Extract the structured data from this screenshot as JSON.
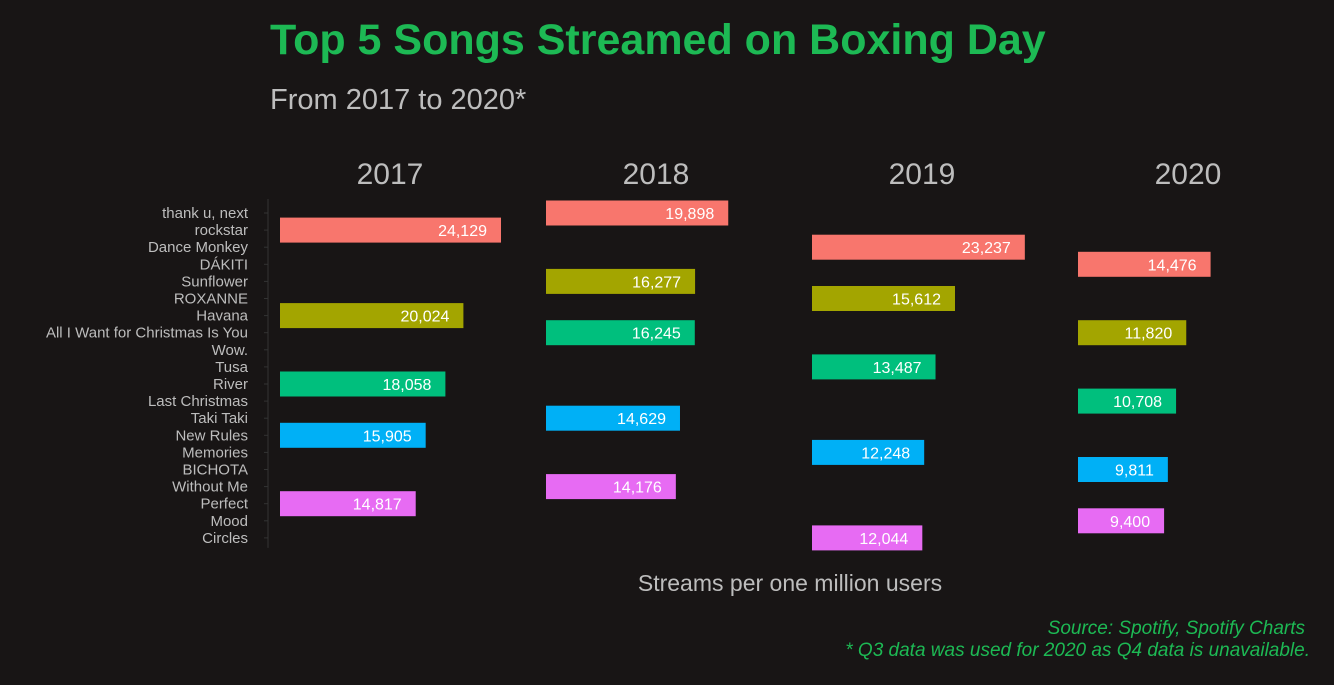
{
  "chart_data": {
    "type": "bar",
    "orientation": "horizontal",
    "title": "Top 5 Songs Streamed on Boxing Day",
    "subtitle": "From 2017 to 2020*",
    "xlabel": "Streams per one million users",
    "ylabel": "",
    "grid": false,
    "categories": [
      "thank u, next",
      "rockstar",
      "Dance Monkey",
      "DÁKITI",
      "Sunflower",
      "ROXANNE",
      "Havana",
      "All I Want for Christmas Is You",
      "Wow.",
      "Tusa",
      "River",
      "Last Christmas",
      "Taki Taki",
      "New Rules",
      "Memories",
      "BICHOTA",
      "Without Me",
      "Perfect",
      "Mood",
      "Circles"
    ],
    "rank_colors": [
      "#F8766D",
      "#A3A500",
      "#00BF7D",
      "#00B0F6",
      "#E76BF3"
    ],
    "facets": [
      {
        "label": "2017",
        "bars": [
          {
            "song": "rockstar",
            "rank": 1,
            "value": 24129,
            "label": "24,129"
          },
          {
            "song": "Havana",
            "rank": 2,
            "value": 20024,
            "label": "20,024"
          },
          {
            "song": "River",
            "rank": 3,
            "value": 18058,
            "label": "18,058"
          },
          {
            "song": "New Rules",
            "rank": 4,
            "value": 15905,
            "label": "15,905"
          },
          {
            "song": "Perfect",
            "rank": 5,
            "value": 14817,
            "label": "14,817"
          }
        ]
      },
      {
        "label": "2018",
        "bars": [
          {
            "song": "thank u, next",
            "rank": 1,
            "value": 19898,
            "label": "19,898"
          },
          {
            "song": "Sunflower",
            "rank": 2,
            "value": 16277,
            "label": "16,277"
          },
          {
            "song": "All I Want for Christmas Is You",
            "rank": 3,
            "value": 16245,
            "label": "16,245"
          },
          {
            "song": "Taki Taki",
            "rank": 4,
            "value": 14629,
            "label": "14,629"
          },
          {
            "song": "Without Me",
            "rank": 5,
            "value": 14176,
            "label": "14,176"
          }
        ]
      },
      {
        "label": "2019",
        "bars": [
          {
            "song": "Dance Monkey",
            "rank": 1,
            "value": 23237,
            "label": "23,237"
          },
          {
            "song": "ROXANNE",
            "rank": 2,
            "value": 15612,
            "label": "15,612"
          },
          {
            "song": "Tusa",
            "rank": 3,
            "value": 13487,
            "label": "13,487"
          },
          {
            "song": "Memories",
            "rank": 4,
            "value": 12248,
            "label": "12,248"
          },
          {
            "song": "Circles",
            "rank": 5,
            "value": 12044,
            "label": "12,044"
          }
        ]
      },
      {
        "label": "2020",
        "bars": [
          {
            "song": "DÁKITI",
            "rank": 1,
            "value": 14476,
            "label": "14,476"
          },
          {
            "song": "All I Want for Christmas Is You",
            "rank": 2,
            "value": 11820,
            "label": "11,820"
          },
          {
            "song": "Last Christmas",
            "rank": 3,
            "value": 10708,
            "label": "10,708"
          },
          {
            "song": "BICHOTA",
            "rank": 4,
            "value": 9811,
            "label": "9,811"
          },
          {
            "song": "Mood",
            "rank": 5,
            "value": 9400,
            "label": "9,400"
          }
        ]
      }
    ],
    "xlim": [
      0,
      26000
    ],
    "legend": "none"
  },
  "captions": {
    "source": "Source: Spotify, Spotify Charts",
    "note": "* Q3 data was used for 2020 as Q4 data is unavailable."
  }
}
